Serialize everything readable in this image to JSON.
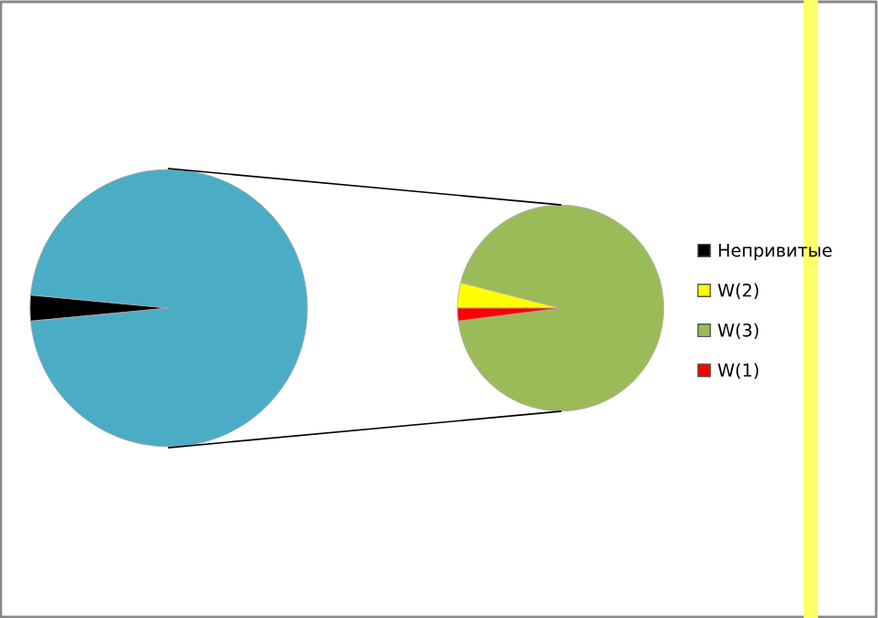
{
  "chart_data": [
    {
      "type": "pie",
      "categories": [
        "Непривитые",
        null
      ],
      "values": [
        3,
        97
      ],
      "colors": [
        "#000000",
        "#4bacc6"
      ],
      "legend": "right"
    },
    {
      "type": "pie",
      "categories": [
        "W(2)",
        "W(3)",
        "W(1)"
      ],
      "values": [
        4,
        94,
        2
      ],
      "colors": [
        "#ffff00",
        "#9bbb59",
        "#ff0000"
      ],
      "legend": "right"
    }
  ]
}
